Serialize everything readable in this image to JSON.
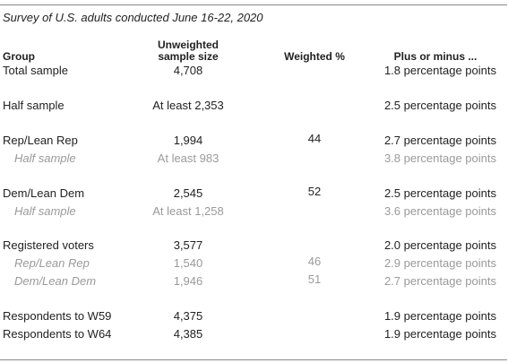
{
  "subtitle": "Survey of U.S. adults conducted June 16-22, 2020",
  "headers": {
    "group": "Group",
    "sample_size": "Unweighted sample size",
    "weighted": "Weighted %",
    "plus_minus": "Plus or minus ..."
  },
  "rows": [
    {
      "group": "Total sample",
      "size": "4,708",
      "weighted": "",
      "plus": "1.8 percentage points",
      "sub": false
    },
    {
      "group": "Half sample",
      "size": "At least 2,353",
      "weighted": "",
      "plus": "2.5 percentage points",
      "sub": false
    },
    {
      "group": "Rep/Lean Rep",
      "size": "1,994",
      "weighted": "44",
      "plus": "2.7 percentage points",
      "sub": false
    },
    {
      "group": "Half sample",
      "size": "At least 983",
      "weighted": "",
      "plus": "3.8 percentage points",
      "sub": true
    },
    {
      "group": "Dem/Lean Dem",
      "size": "2,545",
      "weighted": "52",
      "plus": "2.5 percentage points",
      "sub": false
    },
    {
      "group": "Half sample",
      "size": "At least 1,258",
      "weighted": "",
      "plus": "3.6 percentage points",
      "sub": true
    },
    {
      "group": "Registered voters",
      "size": "3,577",
      "weighted": "",
      "plus": "2.0 percentage points",
      "sub": false
    },
    {
      "group": "Rep/Lean Rep",
      "size": "1,540",
      "weighted": "46",
      "plus": "2.9 percentage points",
      "sub": true
    },
    {
      "group": "Dem/Lean Dem",
      "size": "1,946",
      "weighted": "51",
      "plus": "2.7 percentage points",
      "sub": true
    },
    {
      "group": "Respondents to W59",
      "size": "4,375",
      "weighted": "",
      "plus": "1.9 percentage points",
      "sub": false
    },
    {
      "group": "Respondents to W64",
      "size": "4,385",
      "weighted": "",
      "plus": "1.9 percentage points",
      "sub": false
    }
  ],
  "colors": {
    "text": "#222222",
    "muted": "#9a9a9a",
    "rule": "#8a8a8a"
  }
}
